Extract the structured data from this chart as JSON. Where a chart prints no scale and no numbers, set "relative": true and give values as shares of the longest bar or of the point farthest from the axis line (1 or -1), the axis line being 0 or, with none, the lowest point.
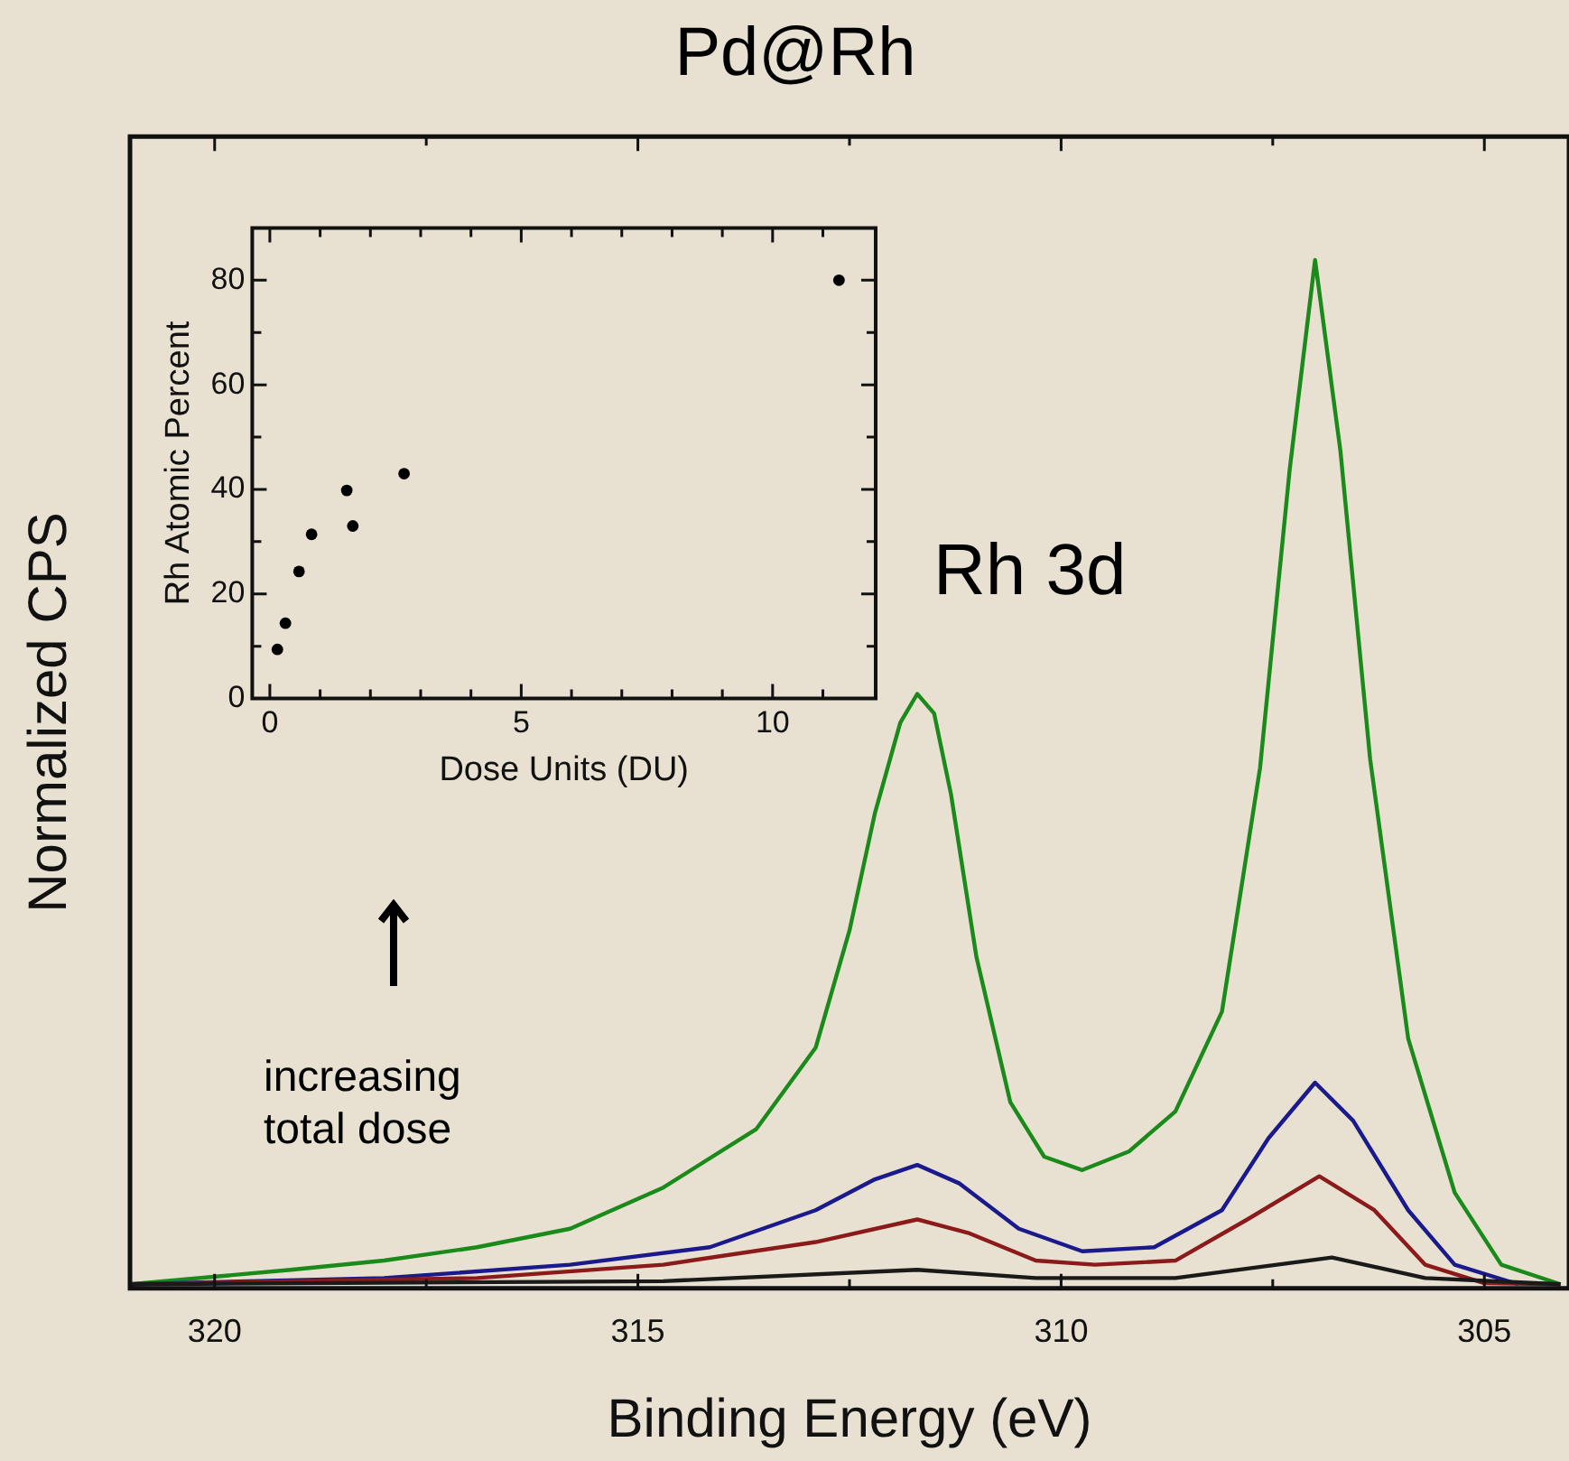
{
  "chart_data": [
    {
      "type": "line",
      "title": "Pd@Rh",
      "xlabel": "Binding Energy (eV)",
      "ylabel": "Normalized CPS",
      "relative": true,
      "legend": false,
      "marker": "none",
      "line_style": "solid",
      "xlim": [
        321,
        304
      ],
      "xticks": [
        320,
        {
          "value": 317.5,
          "label": null
        },
        315,
        {
          "value": 312.5,
          "label": null
        },
        310,
        {
          "value": 307.5,
          "label": null
        },
        305
      ],
      "annotations": [
        "Rh 3d",
        "increasing total dose"
      ],
      "series": [
        {
          "color": "#1a1a1a",
          "x": [
            321.0,
            314.7,
            311.7,
            310.3,
            308.65,
            306.8,
            305.7,
            304.1
          ],
          "values": [
            0.004,
            0.007,
            0.018,
            0.01,
            0.01,
            0.03,
            0.01,
            0.004
          ]
        },
        {
          "color": "#8b1a1a",
          "x": [
            321.0,
            316.9,
            314.7,
            312.9,
            311.7,
            311.1,
            310.3,
            309.6,
            308.65,
            307.8,
            306.95,
            306.3,
            305.7,
            305.0,
            304.1
          ],
          "values": [
            0.004,
            0.01,
            0.023,
            0.045,
            0.067,
            0.054,
            0.027,
            0.023,
            0.027,
            0.067,
            0.109,
            0.076,
            0.023,
            0.005,
            0.004
          ]
        },
        {
          "color": "#1a1a8c",
          "x": [
            321.0,
            318.0,
            315.8,
            314.15,
            312.9,
            312.2,
            311.7,
            311.2,
            310.5,
            309.75,
            308.9,
            308.1,
            307.55,
            307.0,
            306.55,
            305.9,
            305.35,
            304.6
          ],
          "values": [
            0.004,
            0.01,
            0.023,
            0.04,
            0.076,
            0.106,
            0.12,
            0.102,
            0.058,
            0.036,
            0.04,
            0.076,
            0.146,
            0.2,
            0.163,
            0.076,
            0.023,
            0.004
          ]
        },
        {
          "color": "#1a8a1a",
          "x": [
            321.0,
            319.1,
            318.0,
            316.9,
            315.8,
            314.7,
            313.6,
            312.9,
            312.5,
            312.2,
            311.9,
            311.7,
            311.5,
            311.3,
            311.0,
            310.6,
            310.2,
            309.75,
            309.2,
            308.65,
            308.1,
            307.65,
            307.3,
            307.0,
            306.7,
            306.35,
            305.9,
            305.35,
            304.8,
            304.1
          ],
          "values": [
            0.004,
            0.018,
            0.027,
            0.04,
            0.058,
            0.098,
            0.155,
            0.234,
            0.348,
            0.462,
            0.55,
            0.578,
            0.559,
            0.48,
            0.322,
            0.181,
            0.128,
            0.115,
            0.133,
            0.172,
            0.269,
            0.506,
            0.796,
            1.0,
            0.814,
            0.515,
            0.243,
            0.093,
            0.023,
            0.004
          ]
        }
      ]
    },
    {
      "type": "scatter",
      "xlabel": "Dose Units (DU)",
      "ylabel": "Rh Atomic Percent",
      "legend": false,
      "marker": "circle",
      "xlim": [
        -0.35,
        12.05
      ],
      "ylim": [
        0,
        90
      ],
      "xticks": [
        0,
        {
          "value": 1,
          "label": null
        },
        {
          "value": 2,
          "label": null
        },
        {
          "value": 3,
          "label": null
        },
        {
          "value": 4,
          "label": null
        },
        5,
        {
          "value": 6,
          "label": null
        },
        {
          "value": 7,
          "label": null
        },
        {
          "value": 8,
          "label": null
        },
        {
          "value": 9,
          "label": null
        },
        10,
        {
          "value": 11,
          "label": null
        }
      ],
      "yticks": [
        0,
        {
          "value": 10,
          "label": null
        },
        20,
        {
          "value": 30,
          "label": null
        },
        40,
        {
          "value": 50,
          "label": null
        },
        60,
        {
          "value": 70,
          "label": null
        },
        80
      ],
      "series": [
        {
          "color": "#000000",
          "x": [
            0.15,
            0.31,
            0.58,
            0.83,
            1.53,
            1.65,
            2.67,
            11.32
          ],
          "values": [
            9.4,
            14.4,
            24.3,
            31.4,
            39.8,
            33.0,
            43.0,
            80.0
          ]
        }
      ]
    }
  ]
}
